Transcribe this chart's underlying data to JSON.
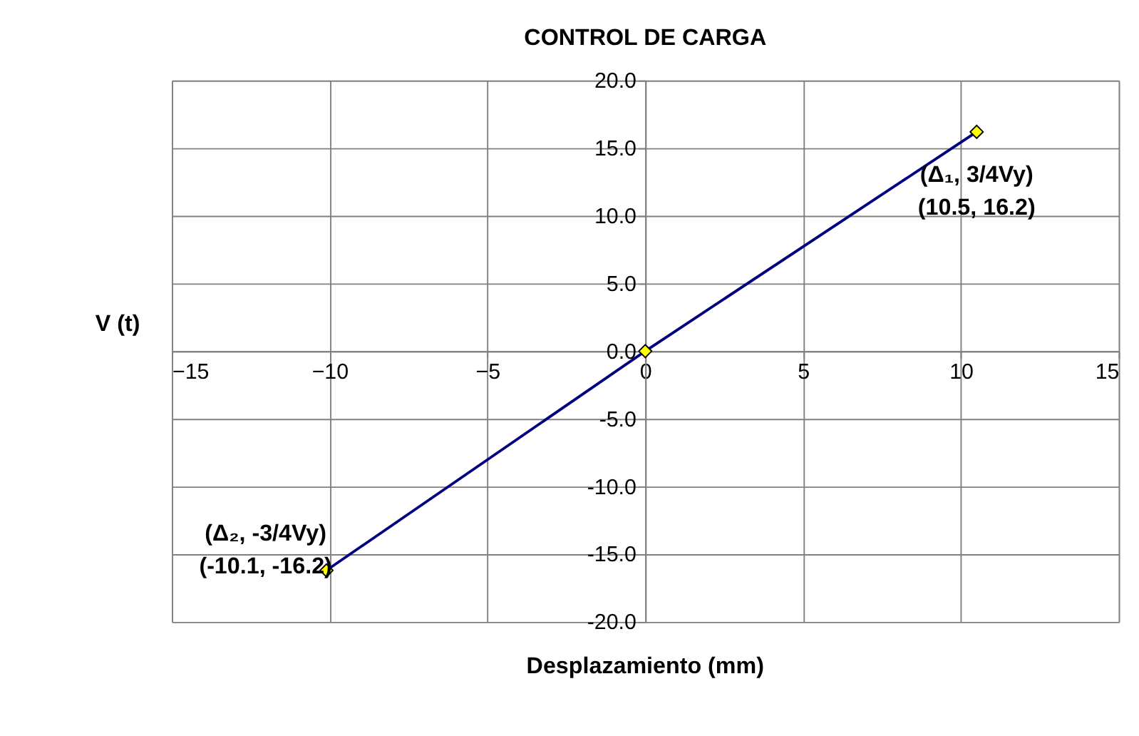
{
  "chart_data": {
    "type": "line",
    "title": "CONTROL DE CARGA",
    "xlabel": "Desplazamiento (mm)",
    "ylabel": "V (t)",
    "x": [
      -10.1,
      0,
      10.5
    ],
    "series": [
      {
        "color": "#000080",
        "values": [
          -16.2,
          0,
          16.2
        ]
      }
    ],
    "xlim": [
      -15,
      15
    ],
    "xticks": [
      -15,
      -10,
      -5,
      0,
      5,
      10,
      15
    ],
    "ylim": [
      -20,
      20
    ],
    "yticks": [
      {
        "value": -20,
        "label": "-20.0"
      },
      {
        "value": -15,
        "label": "-15.0"
      },
      {
        "value": -10,
        "label": "-10.0"
      },
      {
        "value": -5,
        "label": "-5.0"
      },
      {
        "value": 0,
        "label": "0.0"
      },
      {
        "value": 5,
        "label": "5.0"
      },
      {
        "value": 10,
        "label": "10.0"
      },
      {
        "value": 15,
        "label": "15.0"
      },
      {
        "value": 20,
        "label": "20.0"
      }
    ],
    "grid": true,
    "marker": "diamond",
    "line_style": "solid",
    "annotations": [
      {
        "text": "(Δ₁, 3/4Vy)\n(10.5, 16.2)",
        "x": 10.5,
        "y": 16.2
      },
      {
        "text": "(Δ₂, -3/4Vy)\n(-10.1, -16.2)",
        "x": -10.1,
        "y": -16.2
      }
    ]
  }
}
